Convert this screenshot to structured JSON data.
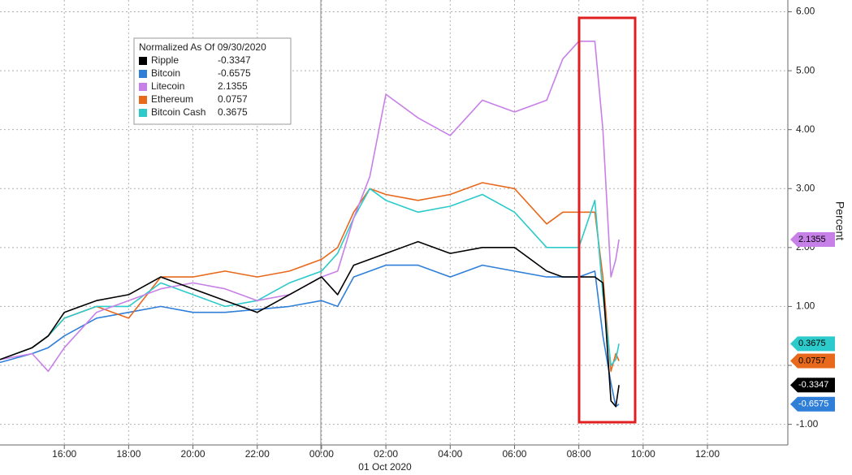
{
  "chart_data": {
    "type": "line",
    "legend_title": "Normalized As Of 09/30/2020",
    "y_label": "Percent",
    "date_label": "01 Oct 2020",
    "x": [
      -10,
      -9,
      -8.5,
      -8,
      -7,
      -6,
      -5,
      -4,
      -3,
      -2,
      -1,
      0,
      0.5,
      1,
      1.5,
      2,
      3,
      4,
      5,
      6,
      7,
      7.5,
      8,
      8.5,
      8.75,
      9,
      9.15,
      9.25
    ],
    "xlim": [
      -10,
      14.5
    ],
    "xticks": [
      {
        "value": -8,
        "label": "16:00"
      },
      {
        "value": -6,
        "label": "18:00"
      },
      {
        "value": -4,
        "label": "20:00"
      },
      {
        "value": -2,
        "label": "22:00"
      },
      {
        "value": 0,
        "label": "00:00"
      },
      {
        "value": 2,
        "label": "02:00"
      },
      {
        "value": 4,
        "label": "04:00"
      },
      {
        "value": 6,
        "label": "06:00"
      },
      {
        "value": 8,
        "label": "08:00"
      },
      {
        "value": 10,
        "label": "10:00"
      },
      {
        "value": 12,
        "label": "12:00"
      }
    ],
    "ylim": [
      -1.35,
      6.2
    ],
    "yticks": [
      {
        "value": 6,
        "label": "6.00"
      },
      {
        "value": 5,
        "label": "5.00"
      },
      {
        "value": 4,
        "label": "4.00"
      },
      {
        "value": 3,
        "label": "3.00"
      },
      {
        "value": 2,
        "label": "2.00"
      },
      {
        "value": 1,
        "label": "1.00"
      },
      {
        "value": 0,
        "label": "0.00"
      },
      {
        "value": -1,
        "label": "-1.00"
      }
    ],
    "grid": true,
    "series": [
      {
        "name": "Ripple",
        "color": "#000000",
        "values": [
          0.1,
          0.3,
          0.5,
          0.9,
          1.1,
          1.2,
          1.5,
          1.3,
          1.1,
          0.9,
          1.2,
          1.5,
          1.2,
          1.7,
          1.8,
          1.9,
          2.1,
          1.9,
          2.0,
          2.0,
          1.6,
          1.5,
          1.5,
          1.5,
          1.4,
          -0.6,
          -0.7,
          -0.3347
        ]
      },
      {
        "name": "Bitcoin",
        "color": "#2f7fd8",
        "values": [
          0.05,
          0.2,
          0.3,
          0.5,
          0.8,
          0.9,
          1.0,
          0.9,
          0.9,
          0.95,
          1.0,
          1.1,
          1.0,
          1.5,
          1.6,
          1.7,
          1.7,
          1.5,
          1.7,
          1.6,
          1.5,
          1.5,
          1.5,
          1.6,
          0.5,
          -0.3,
          -0.7,
          -0.6575
        ]
      },
      {
        "name": "Litecoin",
        "color": "#c780e8",
        "values": [
          0.1,
          0.2,
          -0.1,
          0.3,
          0.9,
          1.1,
          1.3,
          1.4,
          1.3,
          1.1,
          1.2,
          1.5,
          1.6,
          2.5,
          3.2,
          4.6,
          4.2,
          3.9,
          4.5,
          4.3,
          4.5,
          5.2,
          5.5,
          5.5,
          4.0,
          1.5,
          1.8,
          2.1355
        ]
      },
      {
        "name": "Ethereum",
        "color": "#e8681c",
        "values": [
          0.1,
          0.3,
          0.5,
          0.8,
          1.0,
          0.8,
          1.5,
          1.5,
          1.6,
          1.5,
          1.6,
          1.8,
          2.0,
          2.6,
          3.0,
          2.9,
          2.8,
          2.9,
          3.1,
          3.0,
          2.4,
          2.6,
          2.6,
          2.6,
          1.5,
          -0.1,
          0.2,
          0.0757
        ]
      },
      {
        "name": "Bitcoin Cash",
        "color": "#2ccaca",
        "values": [
          0.1,
          0.3,
          0.5,
          0.8,
          1.0,
          1.0,
          1.4,
          1.2,
          1.0,
          1.1,
          1.4,
          1.6,
          1.9,
          2.5,
          3.0,
          2.8,
          2.6,
          2.7,
          2.9,
          2.6,
          2.0,
          2.0,
          2.0,
          2.8,
          1.2,
          0.0,
          0.1,
          0.3675
        ]
      }
    ]
  }
}
